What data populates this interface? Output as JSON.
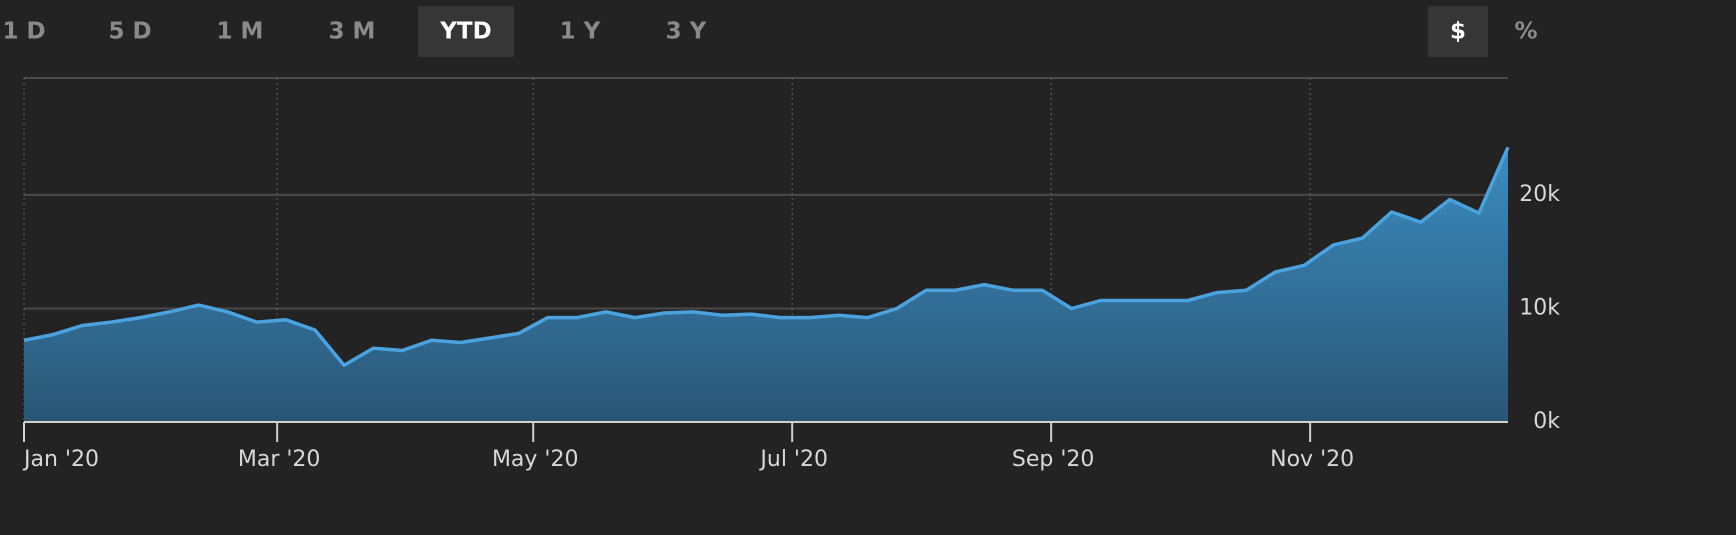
{
  "ranges": [
    "1 D",
    "5 D",
    "1 M",
    "3 M",
    "YTD",
    "1 Y",
    "3 Y"
  ],
  "active_range": 4,
  "units": [
    "$",
    "%"
  ],
  "active_unit": 0,
  "chart_data": {
    "type": "area",
    "color": "#4aa3df",
    "values": [
      7200,
      7700,
      8500,
      8800,
      9200,
      9700,
      10300,
      9700,
      8800,
      9000,
      8100,
      5000,
      6500,
      6300,
      7200,
      7000,
      7400,
      7800,
      9200,
      9200,
      9700,
      9200,
      9600,
      9700,
      9400,
      9500,
      9200,
      9200,
      9400,
      9200,
      10000,
      11600,
      11600,
      12100,
      11600,
      11600,
      10000,
      10700,
      10700,
      10700,
      10700,
      11400,
      11600,
      13200,
      13800,
      15600,
      16200,
      18500,
      17600,
      19600,
      18400,
      24200
    ],
    "xlim": [
      0,
      51
    ],
    "xticks": [
      {
        "value": 0,
        "label": "Jan '20"
      },
      {
        "value": 8.7,
        "label": "Mar '20"
      },
      {
        "value": 17.5,
        "label": "May '20"
      },
      {
        "value": 26.4,
        "label": "Jul '20"
      },
      {
        "value": 35.3,
        "label": "Sep '20"
      },
      {
        "value": 44.2,
        "label": "Nov '20"
      }
    ],
    "ylim": [
      0,
      30300
    ],
    "yticks": [
      {
        "value": 0,
        "label": "0k"
      },
      {
        "value": 10000,
        "label": "10k"
      },
      {
        "value": 20000,
        "label": "20k"
      }
    ],
    "grid": true
  }
}
